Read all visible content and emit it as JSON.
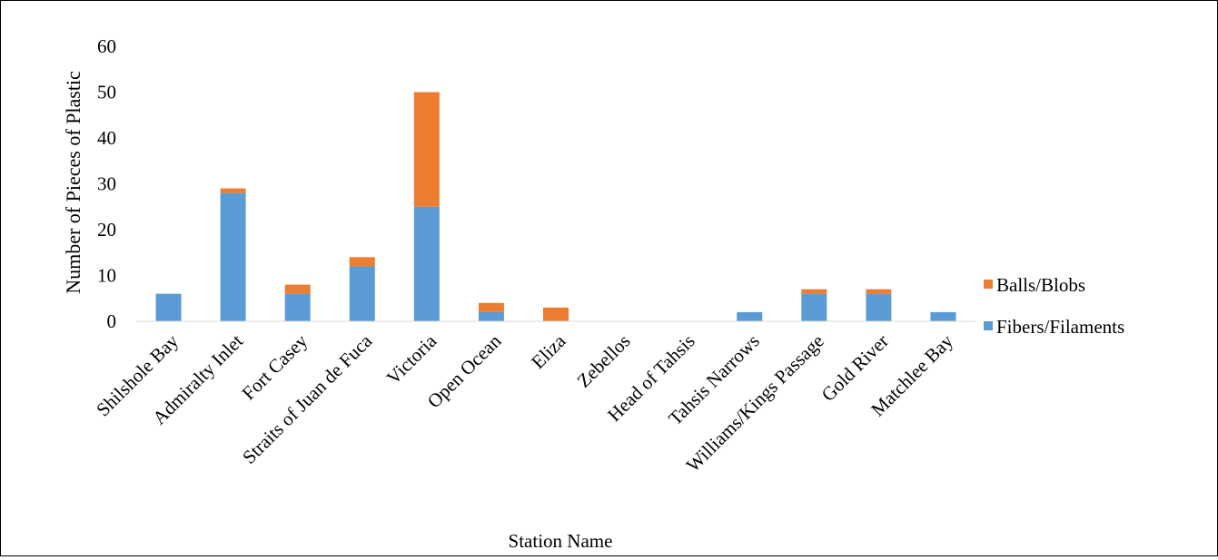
{
  "chart_data": {
    "type": "bar",
    "stacked": true,
    "title": "",
    "xlabel": "Station Name",
    "ylabel": "Number of Pieces of Plastic",
    "ylim": [
      0,
      60
    ],
    "yticks": [
      0,
      10,
      20,
      30,
      40,
      50,
      60
    ],
    "grid": false,
    "legend_position": "right",
    "categories": [
      "Shilshole Bay",
      "Admiralty Inlet",
      "Fort Casey",
      "Straits of Juan de Fuca",
      "Victoria",
      "Open Ocean",
      "Eliza",
      "Zebellos",
      "Head of Tahsis",
      "Tahsis Narrows",
      "Williams/Kings Passage",
      "Gold River",
      "Matchlee Bay"
    ],
    "series": [
      {
        "name": "Fibers/Filaments",
        "color": "#5B9BD5",
        "values": [
          6,
          28,
          6,
          12,
          25,
          2,
          0,
          0,
          0,
          2,
          6,
          6,
          2
        ]
      },
      {
        "name": "Balls/Blobs",
        "color": "#ED7D31",
        "values": [
          0,
          1,
          2,
          2,
          25,
          2,
          3,
          0,
          0,
          0,
          1,
          1,
          0
        ]
      }
    ],
    "legend_order": [
      "Balls/Blobs",
      "Fibers/Filaments"
    ]
  }
}
